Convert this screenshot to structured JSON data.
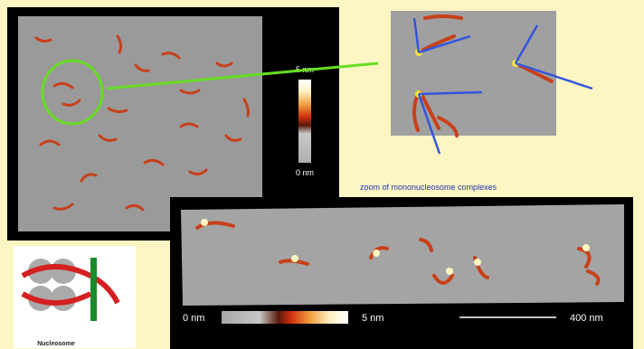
{
  "top_panel": {
    "colorbar_max": "5 nm",
    "colorbar_min": "0 nm"
  },
  "zoom_caption": "zoom of mononucleosome complexes",
  "bottom_panel": {
    "colorbar_min": "0 nm",
    "colorbar_max": "5 nm",
    "scale_bar": "400 nm"
  },
  "diagram": {
    "title": "Nucleosome"
  }
}
